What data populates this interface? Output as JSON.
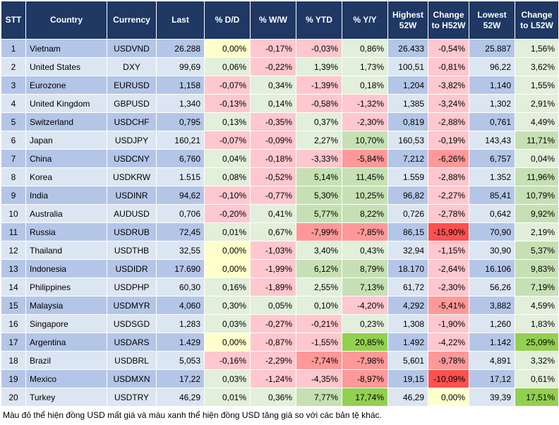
{
  "chart_data": {
    "type": "table",
    "columns": [
      {
        "key": "stt",
        "label": "STT"
      },
      {
        "key": "country",
        "label": "Country"
      },
      {
        "key": "currency",
        "label": "Currency"
      },
      {
        "key": "last",
        "label": "Last"
      },
      {
        "key": "dd",
        "label": "% D/D"
      },
      {
        "key": "ww",
        "label": "% W/W"
      },
      {
        "key": "ytd",
        "label": "% YTD"
      },
      {
        "key": "yy",
        "label": "% Y/Y"
      },
      {
        "key": "high52",
        "label": "Highest 52W"
      },
      {
        "key": "chh52",
        "label": "Change to H52W"
      },
      {
        "key": "low52",
        "label": "Lowest 52W"
      },
      {
        "key": "chl52",
        "label": "Change to L52W"
      }
    ],
    "rows": [
      {
        "stt": "1",
        "country": "Vietnam",
        "currency": "USDVND",
        "last": "26.288",
        "dd": "0,00%",
        "ww": "-0,17%",
        "ytd": "-0,03%",
        "yy": "0,86%",
        "high52": "26.433",
        "chh52": "-0,54%",
        "low52": "25.887",
        "chl52": "1,56%"
      },
      {
        "stt": "2",
        "country": "United States",
        "currency": "DXY",
        "last": "99,69",
        "dd": "0,06%",
        "ww": "-0,22%",
        "ytd": "1,39%",
        "yy": "1,73%",
        "high52": "100,51",
        "chh52": "-0,81%",
        "low52": "96,22",
        "chl52": "3,62%"
      },
      {
        "stt": "3",
        "country": "Eurozone",
        "currency": "EURUSD",
        "last": "1,158",
        "dd": "-0,07%",
        "ww": "0,34%",
        "ytd": "-1,39%",
        "yy": "0,18%",
        "high52": "1,204",
        "chh52": "-3,82%",
        "low52": "1,140",
        "chl52": "1,55%"
      },
      {
        "stt": "4",
        "country": "United Kingdom",
        "currency": "GBPUSD",
        "last": "1,340",
        "dd": "-0,13%",
        "ww": "0,14%",
        "ytd": "-0,58%",
        "yy": "-1,32%",
        "high52": "1,385",
        "chh52": "-3,24%",
        "low52": "1,302",
        "chl52": "2,91%"
      },
      {
        "stt": "5",
        "country": "Switzerland",
        "currency": "USDCHF",
        "last": "0,795",
        "dd": "0,13%",
        "ww": "-0,35%",
        "ytd": "0,37%",
        "yy": "-2,30%",
        "high52": "0,819",
        "chh52": "-2,88%",
        "low52": "0,761",
        "chl52": "4,49%"
      },
      {
        "stt": "6",
        "country": "Japan",
        "currency": "USDJPY",
        "last": "160,21",
        "dd": "-0,07%",
        "ww": "-0,09%",
        "ytd": "2,27%",
        "yy": "10,70%",
        "high52": "160,53",
        "chh52": "-0,19%",
        "low52": "143,43",
        "chl52": "11,71%"
      },
      {
        "stt": "7",
        "country": "China",
        "currency": "USDCNY",
        "last": "6,760",
        "dd": "0,04%",
        "ww": "-0,18%",
        "ytd": "-3,33%",
        "yy": "-5,84%",
        "high52": "7,212",
        "chh52": "-6,26%",
        "low52": "6,757",
        "chl52": "0,04%"
      },
      {
        "stt": "8",
        "country": "Korea",
        "currency": "USDKRW",
        "last": "1.515",
        "dd": "0,08%",
        "ww": "-0,52%",
        "ytd": "5,14%",
        "yy": "11,45%",
        "high52": "1.559",
        "chh52": "-2,88%",
        "low52": "1.352",
        "chl52": "11,96%"
      },
      {
        "stt": "9",
        "country": "India",
        "currency": "USDINR",
        "last": "94,62",
        "dd": "-0,10%",
        "ww": "-0,77%",
        "ytd": "5,30%",
        "yy": "10,25%",
        "high52": "96,82",
        "chh52": "-2,27%",
        "low52": "85,41",
        "chl52": "10,79%"
      },
      {
        "stt": "10",
        "country": "Australia",
        "currency": "AUDUSD",
        "last": "0,706",
        "dd": "-0,20%",
        "ww": "0,41%",
        "ytd": "5,77%",
        "yy": "8,22%",
        "high52": "0,726",
        "chh52": "-2,78%",
        "low52": "0,642",
        "chl52": "9,92%"
      },
      {
        "stt": "11",
        "country": "Russia",
        "currency": "USDRUB",
        "last": "72,45",
        "dd": "0,01%",
        "ww": "0,67%",
        "ytd": "-7,99%",
        "yy": "-7,85%",
        "high52": "86,15",
        "chh52": "-15,90%",
        "low52": "70,90",
        "chl52": "2,19%"
      },
      {
        "stt": "12",
        "country": "Thailand",
        "currency": "USDTHB",
        "last": "32,55",
        "dd": "0,00%",
        "ww": "-1,03%",
        "ytd": "3,40%",
        "yy": "0,43%",
        "high52": "32,94",
        "chh52": "-1,15%",
        "low52": "30,90",
        "chl52": "5,37%"
      },
      {
        "stt": "13",
        "country": "Indonesia",
        "currency": "USDIDR",
        "last": "17.690",
        "dd": "0,00%",
        "ww": "-1,99%",
        "ytd": "6,12%",
        "yy": "8,79%",
        "high52": "18.170",
        "chh52": "-2,64%",
        "low52": "16.106",
        "chl52": "9,83%"
      },
      {
        "stt": "14",
        "country": "Philippines",
        "currency": "USDPHP",
        "last": "60,30",
        "dd": "0,16%",
        "ww": "-1,89%",
        "ytd": "2,55%",
        "yy": "7,13%",
        "high52": "61,72",
        "chh52": "-2,30%",
        "low52": "56,26",
        "chl52": "7,19%"
      },
      {
        "stt": "15",
        "country": "Malaysia",
        "currency": "USDMYR",
        "last": "4,060",
        "dd": "0,30%",
        "ww": "0,05%",
        "ytd": "0,10%",
        "yy": "-4,20%",
        "high52": "4,292",
        "chh52": "-5,41%",
        "low52": "3,882",
        "chl52": "4,59%"
      },
      {
        "stt": "16",
        "country": "Singapore",
        "currency": "USDSGD",
        "last": "1,283",
        "dd": "0,03%",
        "ww": "-0,27%",
        "ytd": "-0,21%",
        "yy": "0,23%",
        "high52": "1,308",
        "chh52": "-1,90%",
        "low52": "1,260",
        "chl52": "1,83%"
      },
      {
        "stt": "17",
        "country": "Argentina",
        "currency": "USDARS",
        "last": "1.429",
        "dd": "0,00%",
        "ww": "-0,87%",
        "ytd": "-1,55%",
        "yy": "20,85%",
        "high52": "1.492",
        "chh52": "-4,22%",
        "low52": "1.142",
        "chl52": "25,09%"
      },
      {
        "stt": "18",
        "country": "Brazil",
        "currency": "USDBRL",
        "last": "5,053",
        "dd": "-0,16%",
        "ww": "-2,29%",
        "ytd": "-7,74%",
        "yy": "-7,98%",
        "high52": "5,601",
        "chh52": "-9,78%",
        "low52": "4,891",
        "chl52": "3,32%"
      },
      {
        "stt": "19",
        "country": "Mexico",
        "currency": "USDMXN",
        "last": "17,22",
        "dd": "0,03%",
        "ww": "-1,24%",
        "ytd": "-4,35%",
        "yy": "-8,97%",
        "high52": "19,15",
        "chh52": "-10,09%",
        "low52": "17,12",
        "chl52": "0,61%"
      },
      {
        "stt": "20",
        "country": "Turkey",
        "currency": "USDTRY",
        "last": "46,29",
        "dd": "0,01%",
        "ww": "0,36%",
        "ytd": "7,77%",
        "yy": "17,74%",
        "high52": "46,29",
        "chh52": "0,00%",
        "low52": "39,39",
        "chl52": "17,51%"
      }
    ],
    "colors": {
      "header_bg": "#1f3864",
      "header_text": "#ffffff",
      "row_odd": "#b4c6e7",
      "row_even": "#dce6f2",
      "neutral": "#ffffcc",
      "pos_light": "#e2efda",
      "pos_mid": "#c6e0b4",
      "pos_strong": "#92d050",
      "neg_light": "#ffc7ce",
      "neg_mid": "#ff9999",
      "neg_strong": "#ff5050"
    }
  },
  "footnote": "Màu đỏ thể hiện đồng USD mất giá và màu xanh thể hiện đồng USD tăng giá so với các bản tệ khác."
}
